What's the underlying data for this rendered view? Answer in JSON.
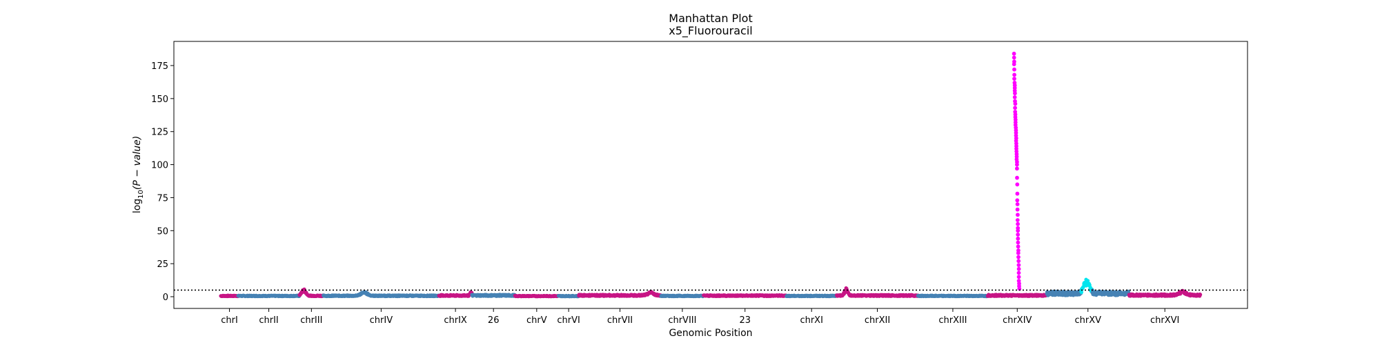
{
  "chart_data": {
    "type": "scatter",
    "title": "Manhattan Plot",
    "subtitle": "x5_Fluorouracil",
    "xlabel": "Genomic Position",
    "ylabel_main": "log",
    "ylabel_sub": "10",
    "ylabel_rest": "(P − value)",
    "ylim": [
      -10,
      195
    ],
    "yticks": [
      0,
      25,
      50,
      75,
      100,
      125,
      150,
      175
    ],
    "threshold": 5,
    "grid": false,
    "legend": "none",
    "colors": {
      "odd": "#c71585",
      "even": "#4682b4",
      "hit": "#ff00ff",
      "hit2": "#00e5ee",
      "threshold": "#000000"
    },
    "chromosomes": [
      {
        "label": "chrI",
        "start": 0,
        "end": 230,
        "baseline": 0.6,
        "color": "odd"
      },
      {
        "label": "chrII",
        "start": 230,
        "end": 1043,
        "baseline": 0.6,
        "color": "even"
      },
      {
        "label": "chrIII",
        "start": 1043,
        "end": 1360,
        "baseline": 0.7,
        "color": "odd",
        "peak": {
          "pos": 1100,
          "height": 4,
          "width": 40
        }
      },
      {
        "label": "chrIV",
        "start": 1360,
        "end": 2892,
        "baseline": 0.7,
        "color": "even",
        "peak": {
          "pos": 1900,
          "height": 2.5,
          "width": 60
        }
      },
      {
        "label": "chrIX",
        "start": 2892,
        "end": 3331,
        "baseline": 0.9,
        "color": "odd",
        "peak": {
          "pos": 3320,
          "height": 2,
          "width": 20
        }
      },
      {
        "label": "26",
        "start": 3331,
        "end": 3900,
        "baseline": 1.0,
        "color": "even"
      },
      {
        "label": "chrV",
        "start": 3900,
        "end": 4477,
        "baseline": 0.5,
        "color": "odd"
      },
      {
        "label": "chrVI",
        "start": 4477,
        "end": 4747,
        "baseline": 0.5,
        "color": "even"
      },
      {
        "label": "chrVII",
        "start": 4747,
        "end": 5838,
        "baseline": 1.0,
        "color": "odd",
        "peak": {
          "pos": 5700,
          "height": 2,
          "width": 60
        }
      },
      {
        "label": "chrVIII",
        "start": 5838,
        "end": 6401,
        "baseline": 0.6,
        "color": "even"
      },
      {
        "label": "23",
        "start": 6401,
        "end": 7500,
        "baseline": 0.8,
        "color": "odd"
      },
      {
        "label": "chrXI",
        "start": 7500,
        "end": 8166,
        "baseline": 0.6,
        "color": "even"
      },
      {
        "label": "chrXII",
        "start": 8166,
        "end": 9244,
        "baseline": 0.9,
        "color": "odd",
        "peak": {
          "pos": 8290,
          "height": 4.5,
          "width": 30
        }
      },
      {
        "label": "chrXIII",
        "start": 9244,
        "end": 10168,
        "baseline": 0.6,
        "color": "even"
      },
      {
        "label": "chrXIV",
        "start": 10168,
        "end": 10952,
        "baseline": 1.0,
        "color": "odd",
        "hit": {
          "pos": 10540,
          "color": "hit"
        }
      },
      {
        "label": "chrXV",
        "start": 10952,
        "end": 12043,
        "baseline": 2.5,
        "color": "even",
        "peak": {
          "pos": 11480,
          "height": 9,
          "width": 55,
          "color": "hit2"
        }
      },
      {
        "label": "chrXVI",
        "start": 12043,
        "end": 12991,
        "baseline": 1.2,
        "color": "odd",
        "peak": {
          "pos": 12750,
          "height": 2.5,
          "width": 60
        }
      }
    ],
    "hit_values": [
      184,
      181,
      178,
      176,
      172,
      168,
      165,
      162,
      160,
      158,
      156,
      154,
      151,
      148,
      146,
      143,
      140,
      138,
      136,
      134,
      132,
      130,
      128,
      126,
      124,
      122,
      120,
      118,
      116,
      114,
      112,
      110,
      108,
      106,
      104,
      102,
      100,
      97,
      90,
      85,
      78,
      73,
      70,
      66,
      62,
      58,
      55,
      52,
      50,
      47,
      44,
      41,
      38,
      35,
      33,
      30,
      27,
      24,
      21,
      18,
      15,
      12,
      10,
      8,
      6
    ]
  }
}
